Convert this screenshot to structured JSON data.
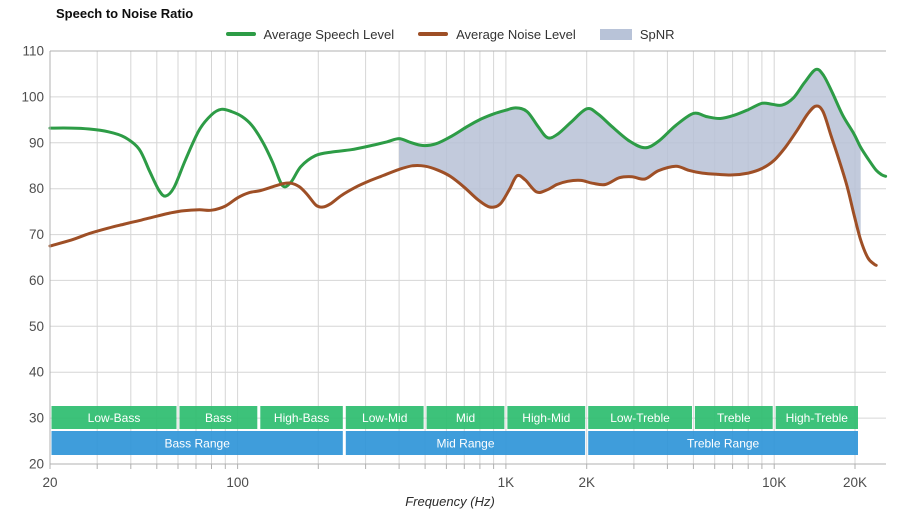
{
  "page": {
    "title": "Speech to Noise Ratio",
    "xlabel": "Frequency (Hz)"
  },
  "legend": {
    "items": [
      {
        "label": "Average Speech Level",
        "color": "#2d9c46",
        "swatch": "line"
      },
      {
        "label": "Average Noise Level",
        "color": "#9e4f26",
        "swatch": "line"
      },
      {
        "label": "SpNR",
        "color": "#b8c3d8",
        "swatch": "area"
      }
    ]
  },
  "chart_data": {
    "type": "line",
    "title": "Speech to Noise Ratio",
    "xlabel": "Frequency (Hz)",
    "x_scale": "log",
    "x_range_hz": [
      20,
      26100
    ],
    "ylim": [
      20,
      110
    ],
    "grid": true,
    "y_ticks": [
      20,
      30,
      40,
      50,
      60,
      70,
      80,
      90,
      100,
      110
    ],
    "x_tick_labels": [
      {
        "hz": 20,
        "label": "20"
      },
      {
        "hz": 100,
        "label": "100"
      },
      {
        "hz": 1000,
        "label": "1K"
      },
      {
        "hz": 2000,
        "label": "2K"
      },
      {
        "hz": 10000,
        "label": "10K"
      },
      {
        "hz": 20000,
        "label": "20K"
      }
    ],
    "x_gridlines_hz": [
      20,
      30,
      40,
      50,
      60,
      70,
      80,
      90,
      100,
      200,
      300,
      400,
      500,
      600,
      700,
      800,
      900,
      1000,
      2000,
      3000,
      4000,
      5000,
      6000,
      7000,
      8000,
      9000,
      10000,
      20000
    ],
    "series": [
      {
        "name": "Average Speech Level",
        "color": "#2d9c46",
        "points": [
          [
            20,
            93.2
          ],
          [
            24,
            93.2
          ],
          [
            28,
            93.0
          ],
          [
            33,
            92.4
          ],
          [
            38,
            91.2
          ],
          [
            43,
            88.6
          ],
          [
            47,
            83.8
          ],
          [
            51,
            79.6
          ],
          [
            54,
            78.4
          ],
          [
            58,
            80.3
          ],
          [
            64,
            86.3
          ],
          [
            72,
            92.8
          ],
          [
            80,
            96.1
          ],
          [
            87,
            97.3
          ],
          [
            95,
            96.8
          ],
          [
            104,
            95.7
          ],
          [
            113,
            93.8
          ],
          [
            124,
            90.2
          ],
          [
            135,
            85.8
          ],
          [
            147,
            80.7
          ],
          [
            158,
            81.4
          ],
          [
            172,
            84.8
          ],
          [
            195,
            87.2
          ],
          [
            225,
            88.0
          ],
          [
            265,
            88.5
          ],
          [
            310,
            89.3
          ],
          [
            360,
            90.2
          ],
          [
            400,
            90.9
          ],
          [
            440,
            90.1
          ],
          [
            490,
            89.4
          ],
          [
            550,
            89.8
          ],
          [
            630,
            91.5
          ],
          [
            720,
            93.6
          ],
          [
            810,
            95.2
          ],
          [
            900,
            96.3
          ],
          [
            1000,
            97.1
          ],
          [
            1090,
            97.6
          ],
          [
            1200,
            96.8
          ],
          [
            1320,
            93.5
          ],
          [
            1430,
            91.1
          ],
          [
            1560,
            91.9
          ],
          [
            1750,
            94.5
          ],
          [
            2000,
            97.4
          ],
          [
            2200,
            96.3
          ],
          [
            2500,
            93.4
          ],
          [
            2900,
            90.3
          ],
          [
            3300,
            88.9
          ],
          [
            3700,
            90.3
          ],
          [
            4300,
            93.8
          ],
          [
            5000,
            96.4
          ],
          [
            5600,
            95.7
          ],
          [
            6300,
            95.3
          ],
          [
            7100,
            96.0
          ],
          [
            8000,
            97.2
          ],
          [
            9000,
            98.6
          ],
          [
            9800,
            98.4
          ],
          [
            10700,
            98.2
          ],
          [
            11800,
            99.8
          ],
          [
            13000,
            103.2
          ],
          [
            14300,
            106.0
          ],
          [
            15300,
            104.6
          ],
          [
            16500,
            100.8
          ],
          [
            18000,
            96.0
          ],
          [
            19800,
            92.0
          ],
          [
            21000,
            89.0
          ],
          [
            22500,
            86.3
          ],
          [
            24000,
            84.0
          ],
          [
            25200,
            83.0
          ],
          [
            26000,
            82.7
          ]
        ]
      },
      {
        "name": "Average Noise Level",
        "color": "#9e4f26",
        "points": [
          [
            20,
            67.5
          ],
          [
            24,
            68.8
          ],
          [
            28,
            70.2
          ],
          [
            33,
            71.4
          ],
          [
            38,
            72.3
          ],
          [
            44,
            73.2
          ],
          [
            50,
            74.0
          ],
          [
            56,
            74.7
          ],
          [
            63,
            75.2
          ],
          [
            72,
            75.4
          ],
          [
            80,
            75.3
          ],
          [
            90,
            76.2
          ],
          [
            100,
            78.0
          ],
          [
            110,
            79.1
          ],
          [
            122,
            79.6
          ],
          [
            135,
            80.4
          ],
          [
            148,
            81.1
          ],
          [
            158,
            81.2
          ],
          [
            170,
            80.4
          ],
          [
            182,
            78.7
          ],
          [
            196,
            76.4
          ],
          [
            208,
            76.0
          ],
          [
            222,
            76.7
          ],
          [
            245,
            78.6
          ],
          [
            275,
            80.3
          ],
          [
            310,
            81.7
          ],
          [
            350,
            82.9
          ],
          [
            400,
            84.2
          ],
          [
            450,
            85.0
          ],
          [
            500,
            84.9
          ],
          [
            560,
            84.0
          ],
          [
            620,
            82.7
          ],
          [
            700,
            80.3
          ],
          [
            790,
            77.5
          ],
          [
            870,
            76.0
          ],
          [
            950,
            76.6
          ],
          [
            1030,
            79.8
          ],
          [
            1100,
            82.8
          ],
          [
            1180,
            81.9
          ],
          [
            1300,
            79.3
          ],
          [
            1420,
            79.7
          ],
          [
            1550,
            80.9
          ],
          [
            1700,
            81.6
          ],
          [
            1900,
            81.8
          ],
          [
            2100,
            81.2
          ],
          [
            2350,
            80.9
          ],
          [
            2650,
            82.4
          ],
          [
            2950,
            82.6
          ],
          [
            3300,
            82.1
          ],
          [
            3700,
            83.9
          ],
          [
            4300,
            84.9
          ],
          [
            4800,
            84.0
          ],
          [
            5400,
            83.4
          ],
          [
            6200,
            83.1
          ],
          [
            7000,
            83.0
          ],
          [
            8000,
            83.4
          ],
          [
            9000,
            84.4
          ],
          [
            10000,
            86.2
          ],
          [
            11000,
            89.0
          ],
          [
            12200,
            92.8
          ],
          [
            13300,
            96.2
          ],
          [
            14300,
            98.0
          ],
          [
            15200,
            96.8
          ],
          [
            16300,
            91.5
          ],
          [
            17500,
            86.0
          ],
          [
            18700,
            80.5
          ],
          [
            19800,
            74.5
          ],
          [
            21000,
            68.8
          ],
          [
            22300,
            65.0
          ],
          [
            23500,
            63.6
          ],
          [
            24000,
            63.3
          ]
        ]
      }
    ],
    "spnr_region": {
      "name": "SpNR",
      "color": "#b7c1d6",
      "opacity": 0.85,
      "from_hz": 400,
      "to_hz": 21000,
      "between": [
        "Average Speech Level",
        "Average Noise Level"
      ]
    },
    "frequency_bands": {
      "sub_row": {
        "color": "#2ebd70",
        "items": [
          {
            "label": "Low-Bass",
            "from_hz": 20,
            "to_hz": 60
          },
          {
            "label": "Bass",
            "from_hz": 60,
            "to_hz": 120
          },
          {
            "label": "High-Bass",
            "from_hz": 120,
            "to_hz": 250
          },
          {
            "label": "Low-Mid",
            "from_hz": 250,
            "to_hz": 500
          },
          {
            "label": "Mid",
            "from_hz": 500,
            "to_hz": 1000
          },
          {
            "label": "High-Mid",
            "from_hz": 1000,
            "to_hz": 2000
          },
          {
            "label": "Low-Treble",
            "from_hz": 2000,
            "to_hz": 5000
          },
          {
            "label": "Treble",
            "from_hz": 5000,
            "to_hz": 10000
          },
          {
            "label": "High-Treble",
            "from_hz": 10000,
            "to_hz": 20000
          }
        ]
      },
      "main_row": {
        "color": "#3096d8",
        "items": [
          {
            "label": "Bass Range",
            "from_hz": 20,
            "to_hz": 250
          },
          {
            "label": "Mid Range",
            "from_hz": 250,
            "to_hz": 2000
          },
          {
            "label": "Treble Range",
            "from_hz": 2000,
            "to_hz": 20000
          }
        ]
      }
    },
    "colors": {
      "gridline": "#d6d6d6",
      "axis_border": "#b0b0b0",
      "tick_text": "#4d4d4d",
      "band_text": "#ffffff"
    }
  }
}
